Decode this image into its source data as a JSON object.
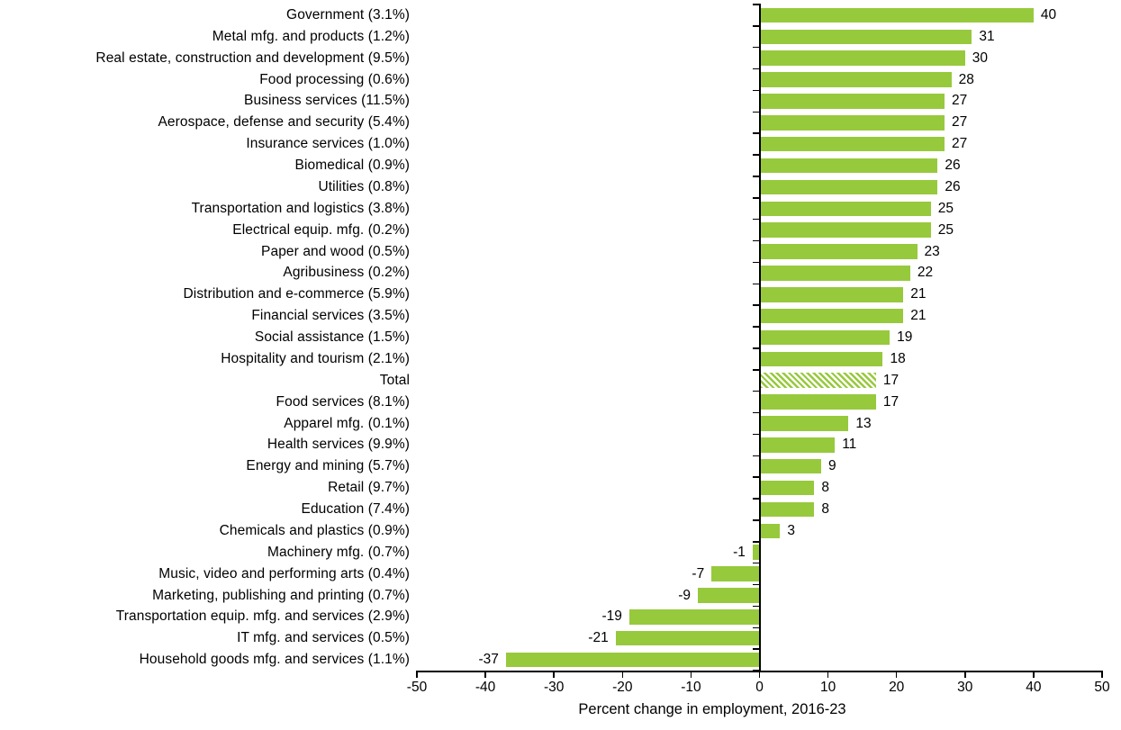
{
  "chart_data": {
    "type": "bar",
    "orientation": "horizontal",
    "title": "",
    "xlabel": "Percent change in employment, 2016-23",
    "ylabel": "",
    "xlim": [
      -50,
      50
    ],
    "x_ticks": [
      -50,
      -40,
      -30,
      -20,
      -10,
      0,
      10,
      20,
      30,
      40,
      50
    ],
    "grid": false,
    "legend": false,
    "bar_color": "#97C93D",
    "text_color": "#000000",
    "axis_color": "#000000",
    "value_labels_shown": true,
    "hatched_categories": [
      "Total"
    ],
    "categories": [
      "Government (3.1%)",
      "Metal mfg. and products (1.2%)",
      "Real estate, construction and development (9.5%)",
      "Food processing (0.6%)",
      "Business services (11.5%)",
      "Aerospace, defense and security (5.4%)",
      "Insurance services (1.0%)",
      "Biomedical (0.9%)",
      "Utilities (0.8%)",
      "Transportation and logistics (3.8%)",
      "Electrical equip. mfg. (0.2%)",
      "Paper and wood (0.5%)",
      "Agribusiness (0.2%)",
      "Distribution and e-commerce (5.9%)",
      "Financial services (3.5%)",
      "Social assistance (1.5%)",
      "Hospitality and tourism (2.1%)",
      "Total",
      "Food services (8.1%)",
      "Apparel mfg. (0.1%)",
      "Health services (9.9%)",
      "Energy and mining (5.7%)",
      "Retail (9.7%)",
      "Education (7.4%)",
      "Chemicals and plastics (0.9%)",
      "Machinery mfg. (0.7%)",
      "Music, video and performing arts (0.4%)",
      "Marketing, publishing and printing (0.7%)",
      "Transportation equip. mfg. and services (2.9%)",
      "IT mfg. and services (0.5%)",
      "Household goods mfg. and services (1.1%)"
    ],
    "values": [
      40,
      31,
      30,
      28,
      27,
      27,
      27,
      26,
      26,
      25,
      25,
      23,
      22,
      21,
      21,
      19,
      18,
      17,
      17,
      13,
      11,
      9,
      8,
      8,
      3,
      -1,
      -7,
      -9,
      -19,
      -21,
      -37
    ]
  }
}
